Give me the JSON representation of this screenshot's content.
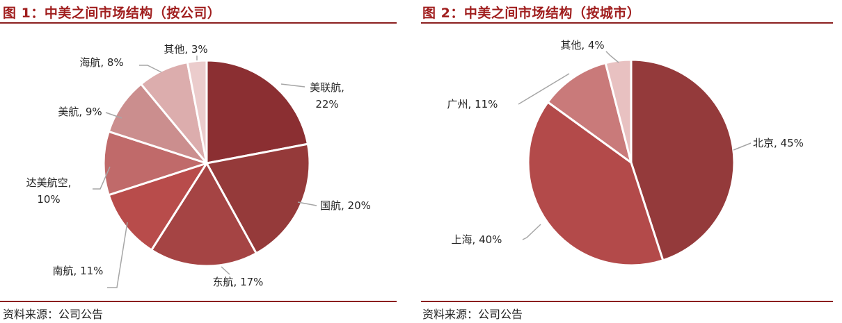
{
  "colors": {
    "title": "#a01e1e",
    "rule": "#8b1f1f",
    "leader": "#a6a6a6",
    "slice_border": "#ffffff"
  },
  "figures": [
    {
      "title": "图 1：中美之间市场结构（按公司）",
      "source": "资料来源：公司公告"
    },
    {
      "title": "图 2：中美之间市场结构（按城市）",
      "source": "资料来源：公司公告"
    }
  ],
  "chart_data": [
    {
      "type": "pie",
      "title": "图 1：中美之间市场结构（按公司）",
      "unit": "%",
      "start": "12 o'clock, clockwise",
      "slices": [
        {
          "name": "美联航",
          "value": 22,
          "label_lines": [
            "美联航,",
            "22%"
          ],
          "color": "#8b2f32"
        },
        {
          "name": "国航",
          "value": 20,
          "label_lines": [
            "国航, 20%"
          ],
          "color": "#953a3a"
        },
        {
          "name": "东航",
          "value": 17,
          "label_lines": [
            "东航, 17%"
          ],
          "color": "#a54444"
        },
        {
          "name": "南航",
          "value": 11,
          "label_lines": [
            "南航, 11%"
          ],
          "color": "#b84c4b"
        },
        {
          "name": "达美航空",
          "value": 10,
          "label_lines": [
            "达美航空,",
            "10%"
          ],
          "color": "#c06a6a"
        },
        {
          "name": "美航",
          "value": 9,
          "label_lines": [
            "美航, 9%"
          ],
          "color": "#cb8e8e"
        },
        {
          "name": "海航",
          "value": 8,
          "label_lines": [
            "海航, 8%"
          ],
          "color": "#dcadad"
        },
        {
          "name": "其他",
          "value": 3,
          "label_lines": [
            "其他, 3%"
          ],
          "color": "#ebcccc"
        }
      ]
    },
    {
      "type": "pie",
      "title": "图 2：中美之间市场结构（按城市）",
      "unit": "%",
      "start": "12 o'clock, clockwise",
      "slices": [
        {
          "name": "北京",
          "value": 45,
          "label_lines": [
            "北京, 45%"
          ],
          "color": "#943a3b"
        },
        {
          "name": "上海",
          "value": 40,
          "label_lines": [
            "上海, 40%"
          ],
          "color": "#b34a4a"
        },
        {
          "name": "广州",
          "value": 11,
          "label_lines": [
            "广州, 11%"
          ],
          "color": "#c97a7a"
        },
        {
          "name": "其他",
          "value": 4,
          "label_lines": [
            "其他, 4%"
          ],
          "color": "#e8c1c1"
        }
      ]
    }
  ]
}
